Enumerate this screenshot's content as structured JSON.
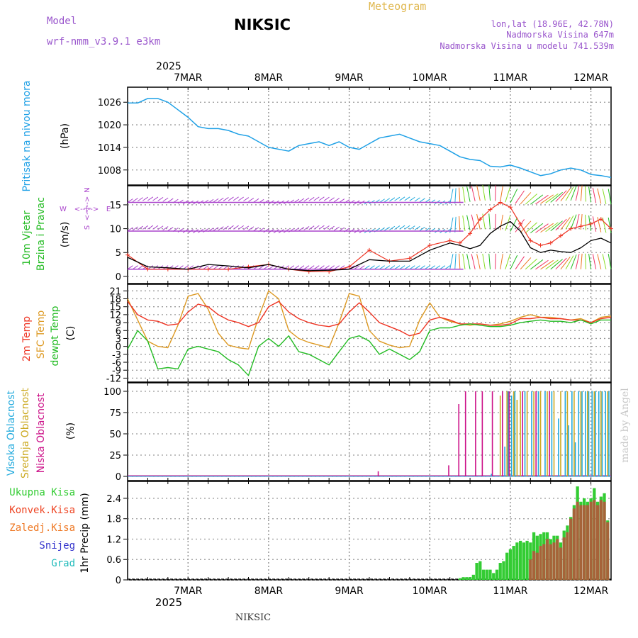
{
  "header": {
    "model_label": "Model",
    "model_name": "wrf-nmm_v3.9.1 e3km",
    "station": "NIKSIC",
    "product": "Meteogram",
    "lonlat": "lon,lat (18.96E, 42.78N)",
    "elevation": "Nadmorska Visina 647m",
    "model_elevation": "Nadmorska Visina u modelu 741.539m",
    "footer_station": "NIKSIC",
    "credit": "made by Angel"
  },
  "colors": {
    "pressure": "#1ea0e6",
    "wind": "#22bb22",
    "dir": "#aa44cc",
    "temp2m": "#ee3322",
    "sfc": "#dd9922",
    "dewpt": "#22bb22",
    "high_cloud": "#22aadd",
    "mid_cloud": "#ccaa22",
    "low_cloud": "#cc1188",
    "total_precip": "#33cc33",
    "conv_precip": "#ee4422",
    "frozen": "#ee7722",
    "snow": "#3333cc",
    "hail": "#22bbbb"
  },
  "time_axis": {
    "year": "2025",
    "day_labels": [
      "7MAR",
      "8MAR",
      "9MAR",
      "10MAR",
      "11MAR",
      "12MAR"
    ]
  },
  "panels": {
    "pressure": {
      "title": "Pritisak na nivou mora",
      "unit": "(hPa)"
    },
    "wind": {
      "title1": "10m Vjetar",
      "title2": "Brzina i Pravac",
      "unit": "(m/s)",
      "compass_n": "N",
      "compass_s": "S",
      "compass_e": "E",
      "compass_w": "W",
      "compass_cross": "<--|-->"
    },
    "temp": {
      "title1": "2m Temp",
      "title2": "SFC Temp",
      "title3": "dewpt Temp",
      "unit": "(C)"
    },
    "cloud": {
      "title1": "Visoka Oblacnost",
      "title2": "Srednja Oblacnost",
      "title3": "Niska Oblacnost",
      "unit": "(%)"
    },
    "precip": {
      "title": "1hr Precip (mm)",
      "legend": [
        "Ukupna Kisa",
        "Konvek.Kisa",
        "Zaledj.Kisa",
        "Snijeg",
        "Grad"
      ]
    }
  },
  "chart_data": [
    {
      "type": "line",
      "panel": "pressure",
      "title": "Pritisak na nivou mora",
      "ylabel": "(hPa)",
      "yticks": [
        1008,
        1014,
        1020,
        1026
      ],
      "ylim": [
        1004,
        1030
      ],
      "xlim_hours": [
        0,
        144
      ],
      "series": [
        {
          "name": "Pritisak na nivou mora",
          "x": [
            0,
            3,
            6,
            9,
            12,
            15,
            18,
            21,
            24,
            27,
            30,
            33,
            36,
            42,
            48,
            51,
            54,
            57,
            60,
            63,
            66,
            69,
            72,
            75,
            78,
            81,
            84,
            87,
            90,
            93,
            96,
            99,
            102,
            105,
            108,
            111,
            114,
            117,
            120,
            123,
            126,
            129,
            132,
            135,
            138,
            141,
            144
          ],
          "values": [
            1025.8,
            1025.8,
            1027,
            1027,
            1026,
            1024,
            1022,
            1019.5,
            1019,
            1019,
            1018.5,
            1017.5,
            1017,
            1014,
            1013,
            1014.5,
            1015,
            1015.5,
            1014.5,
            1015.5,
            1014,
            1013.5,
            1015,
            1016.5,
            1017,
            1017.5,
            1016.5,
            1015.5,
            1015,
            1014.5,
            1013,
            1011.5,
            1010.8,
            1010.5,
            1009,
            1008.8,
            1009.3,
            1008.5,
            1007.5,
            1006.5,
            1007,
            1008,
            1008.5,
            1008,
            1006.8,
            1006.5,
            1006
          ]
        }
      ]
    },
    {
      "type": "line",
      "panel": "wind",
      "title": "10m Vjetar Brzina i Pravac",
      "ylabel": "(m/s)",
      "yticks": [
        0,
        5,
        10,
        15
      ],
      "ylim": [
        -1.5,
        19
      ],
      "xlim_hours": [
        0,
        144
      ],
      "series": [
        {
          "name": "10m wind speed",
          "x": [
            0,
            6,
            12,
            18,
            24,
            30,
            36,
            42,
            48,
            54,
            60,
            66,
            72,
            78,
            84,
            90,
            96,
            99,
            102,
            105,
            108,
            111,
            114,
            117,
            120,
            123,
            126,
            129,
            132,
            135,
            138,
            141,
            144
          ],
          "values": [
            4,
            2,
            1.8,
            1.5,
            2.5,
            2.2,
            1.8,
            2.5,
            1.5,
            1.2,
            1.3,
            1.5,
            3.5,
            3.2,
            3.2,
            5.5,
            7,
            6.5,
            5.8,
            6.5,
            9,
            10.5,
            11.5,
            9.5,
            6,
            5,
            5.5,
            5.2,
            5,
            6,
            7.5,
            8,
            7
          ]
        },
        {
          "name": "gust",
          "x": [
            0,
            6,
            12,
            18,
            24,
            30,
            36,
            42,
            48,
            54,
            60,
            66,
            72,
            78,
            84,
            90,
            96,
            99,
            102,
            105,
            108,
            111,
            114,
            117,
            120,
            123,
            126,
            129,
            132,
            135,
            138,
            141,
            144
          ],
          "values": [
            4.5,
            1.5,
            1.5,
            1.5,
            1.5,
            1.5,
            2,
            2.5,
            1.5,
            1,
            1,
            2,
            5.5,
            3.2,
            3.8,
            6.5,
            7.5,
            7,
            9,
            12,
            14,
            15.5,
            14.5,
            11,
            7.5,
            6.5,
            7,
            8.5,
            10,
            10.5,
            11,
            12,
            10
          ]
        }
      ]
    },
    {
      "type": "line",
      "panel": "temp",
      "title": "2m Temp / SFC Temp / dewpt Temp",
      "ylabel": "(C)",
      "yticks": [
        -12,
        -9,
        -6,
        -3,
        0,
        3,
        6,
        9,
        12,
        15,
        18,
        21
      ],
      "ylim": [
        -13.5,
        23.5
      ],
      "xlim_hours": [
        0,
        144
      ],
      "series": [
        {
          "name": "2m Temp",
          "x": [
            0,
            3,
            6,
            9,
            12,
            15,
            18,
            21,
            24,
            27,
            30,
            33,
            36,
            39,
            42,
            45,
            48,
            51,
            54,
            57,
            60,
            63,
            66,
            69,
            72,
            75,
            78,
            81,
            84,
            87,
            90,
            93,
            96,
            99,
            102,
            105,
            108,
            111,
            114,
            117,
            120,
            123,
            126,
            129,
            132,
            135,
            138,
            141,
            144
          ],
          "values": [
            17,
            12,
            10,
            9.5,
            8,
            8.5,
            13,
            16,
            15,
            12,
            10,
            9,
            7.5,
            9,
            15,
            17,
            13,
            10.5,
            9,
            8,
            7.5,
            8.5,
            13,
            16.5,
            13,
            9,
            7.5,
            6,
            4,
            5,
            10,
            11,
            10,
            8.5,
            8.5,
            8.5,
            8,
            8,
            8.5,
            10.5,
            10.5,
            11,
            10.5,
            10.5,
            10,
            10,
            9,
            10.5,
            11
          ]
        },
        {
          "name": "SFC Temp",
          "x": [
            0,
            3,
            6,
            9,
            12,
            15,
            18,
            21,
            24,
            27,
            30,
            33,
            36,
            39,
            42,
            45,
            48,
            51,
            54,
            57,
            60,
            63,
            66,
            69,
            72,
            75,
            78,
            81,
            84,
            87,
            90,
            93,
            96,
            99,
            102,
            105,
            108,
            111,
            114,
            117,
            120,
            123,
            126,
            129,
            132,
            135,
            138,
            141,
            144
          ],
          "values": [
            18,
            10,
            2,
            0,
            -0.5,
            8,
            19,
            20,
            14,
            5,
            0.5,
            -0.5,
            -1,
            11,
            21,
            18,
            6,
            3,
            1.5,
            0.5,
            -0.5,
            9,
            20,
            19,
            6,
            2,
            0.5,
            -0.5,
            0,
            10,
            16.5,
            11,
            9.5,
            8.5,
            8,
            8.5,
            8,
            8.5,
            9.5,
            11,
            12,
            11,
            11,
            10.5,
            10,
            10.5,
            9,
            11,
            11.5
          ]
        },
        {
          "name": "dewpt Temp",
          "x": [
            0,
            3,
            6,
            9,
            12,
            15,
            18,
            21,
            24,
            27,
            30,
            33,
            36,
            39,
            42,
            45,
            48,
            51,
            54,
            57,
            60,
            63,
            66,
            69,
            72,
            75,
            78,
            81,
            84,
            87,
            90,
            93,
            96,
            99,
            102,
            105,
            108,
            111,
            114,
            117,
            120,
            123,
            126,
            129,
            132,
            135,
            138,
            141,
            144
          ],
          "values": [
            -1,
            6,
            2,
            -8.5,
            -8,
            -8.5,
            -1,
            0,
            -1,
            -2,
            -5,
            -7,
            -11,
            0,
            3,
            0,
            4,
            -2,
            -3,
            -5,
            -7,
            -2,
            3,
            4,
            2,
            -3,
            -1,
            -3,
            -5,
            -2,
            6,
            7,
            7,
            8,
            8.5,
            8,
            7.5,
            7.5,
            8,
            9,
            9.5,
            10,
            9.5,
            9.5,
            9,
            10,
            8.5,
            10,
            10
          ]
        }
      ]
    },
    {
      "type": "bar",
      "panel": "cloud",
      "title": "Visoka / Srednja / Niska Oblacnost",
      "ylabel": "(%)",
      "yticks": [
        0,
        25,
        50,
        75,
        100
      ],
      "ylim": [
        -5,
        110
      ],
      "xlim_hours": [
        0,
        144
      ],
      "series": [
        {
          "name": "Visoka Oblacnost",
          "x": [
            108,
            112,
            113,
            114,
            115,
            118,
            120,
            122,
            124,
            126,
            128,
            130,
            131,
            132,
            133,
            134,
            135,
            136,
            137,
            138,
            139,
            140,
            141,
            142,
            143
          ],
          "values": [
            3,
            35,
            100,
            95,
            100,
            100,
            100,
            100,
            100,
            100,
            68,
            100,
            60,
            100,
            40,
            100,
            100,
            100,
            100,
            100,
            100,
            100,
            100,
            100,
            100
          ]
        },
        {
          "name": "Srednja Oblacnost",
          "x": [
            111,
            113,
            115,
            116,
            117,
            119,
            121,
            123,
            125,
            127,
            129,
            131,
            133,
            135,
            137,
            139,
            141,
            143
          ],
          "values": [
            95,
            100,
            100,
            90,
            100,
            100,
            100,
            100,
            100,
            100,
            100,
            100,
            100,
            100,
            100,
            100,
            100,
            100
          ]
        },
        {
          "name": "Niska Oblacnost",
          "x": [
            75,
            96,
            99,
            101,
            104,
            106,
            109,
            112,
            114,
            118,
            122,
            126
          ],
          "values": [
            6,
            13,
            85,
            100,
            100,
            100,
            100,
            100,
            100,
            100,
            100,
            100
          ]
        }
      ]
    },
    {
      "type": "bar",
      "panel": "precip",
      "title": "1hr Precip (mm)",
      "ylabel": "(mm)",
      "yticks": [
        0,
        0.6,
        1.2,
        1.8,
        2.4
      ],
      "ylim": [
        0,
        2.9
      ],
      "xlim_hours": [
        0,
        144
      ],
      "series": [
        {
          "name": "Ukupna Kisa",
          "x": [
            99,
            100,
            101,
            102,
            103,
            104,
            105,
            106,
            107,
            108,
            109,
            110,
            111,
            112,
            113,
            114,
            115,
            116,
            117,
            118,
            119,
            120,
            121,
            122,
            123,
            124,
            125,
            126,
            127,
            128,
            129,
            130,
            131,
            132,
            133,
            134,
            135,
            136,
            137,
            138,
            139,
            140,
            141,
            142,
            143
          ],
          "values": [
            0.05,
            0.08,
            0.08,
            0.08,
            0.15,
            0.5,
            0.55,
            0.3,
            0.3,
            0.3,
            0.2,
            0.3,
            0.5,
            0.55,
            0.8,
            0.9,
            1,
            1.1,
            1.15,
            1.1,
            1.15,
            1.1,
            1.4,
            1.3,
            1.35,
            1.4,
            1.4,
            1.2,
            1.3,
            1.3,
            1.1,
            1.45,
            1.6,
            1.85,
            2.2,
            2.75,
            2.3,
            2.4,
            2.3,
            2.4,
            2.7,
            2.3,
            2.45,
            2.55,
            1.75
          ]
        },
        {
          "name": "Konvek.Kisa",
          "x": [
            120,
            121,
            122,
            123,
            124,
            125,
            126,
            127,
            128,
            129,
            130,
            131,
            132,
            133,
            134,
            135,
            136,
            137,
            138,
            139,
            140,
            141,
            142,
            143
          ],
          "values": [
            0.6,
            0.85,
            0.8,
            1,
            1.05,
            1.2,
            1.05,
            1.1,
            1.2,
            0.95,
            1.25,
            1.4,
            1.8,
            2.1,
            2.3,
            2.2,
            2.2,
            2.2,
            2.3,
            2.35,
            2.2,
            2.35,
            2.3,
            1.7
          ]
        }
      ]
    }
  ]
}
